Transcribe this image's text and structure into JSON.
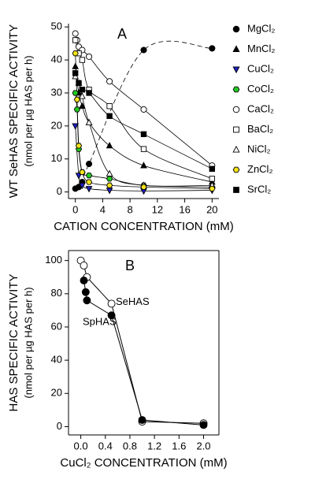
{
  "chart_data": [
    {
      "type": "scatter",
      "panel_label": "A",
      "xlabel": "CATION CONCENTRATION (mM)",
      "ylabel": [
        "WT SeHAS SPECIFIC ACTIVITY",
        "(nmol per µg HAS per h)"
      ],
      "xlim": [
        -1,
        21
      ],
      "ylim": [
        -2,
        51
      ],
      "xticks": [
        0,
        4,
        8,
        12,
        16,
        20
      ],
      "yticks": [
        0,
        10,
        20,
        30,
        40,
        50
      ],
      "legend": "right",
      "fit_curves": true,
      "series": [
        {
          "name": "MgCl₂",
          "marker": "circle",
          "color": "#000000",
          "dashed": true,
          "x": [
            0,
            0.5,
            1,
            2,
            10,
            20
          ],
          "values": [
            1,
            1.5,
            3,
            8.5,
            43,
            43.5
          ]
        },
        {
          "name": "MnCl₂",
          "marker": "triangle-up",
          "color": "#000000",
          "x": [
            0,
            0.5,
            1,
            2,
            5,
            10,
            20
          ],
          "values": [
            38,
            30,
            26,
            21,
            14,
            8,
            3
          ]
        },
        {
          "name": "CuCl₂",
          "marker": "triangle-down",
          "color": "#1f1fbf",
          "x": [
            0,
            0.5,
            1,
            2,
            5,
            10,
            20
          ],
          "values": [
            20,
            5,
            2,
            1,
            0.5,
            0.3,
            0.5
          ]
        },
        {
          "name": "CoCl₂",
          "marker": "hexagon",
          "color": "#22cc22",
          "x": [
            0,
            0.25,
            0.5,
            1,
            2,
            5,
            10,
            20
          ],
          "values": [
            30,
            25,
            13,
            6,
            5,
            4,
            2,
            1.5
          ]
        },
        {
          "name": "CaCl₂",
          "marker": "circle",
          "color": "#ffffff",
          "x": [
            0,
            0.25,
            0.5,
            1,
            2,
            5,
            10,
            20
          ],
          "values": [
            48,
            46,
            44,
            43,
            41,
            33.5,
            25,
            8
          ]
        },
        {
          "name": "BaCl₂",
          "marker": "square",
          "color": "#ffffff",
          "x": [
            0,
            0.5,
            1,
            2,
            5,
            10,
            20
          ],
          "values": [
            46,
            42,
            40,
            31,
            26,
            13,
            4
          ]
        },
        {
          "name": "NiCl₂",
          "marker": "triangle-up",
          "color": "#ffffff",
          "x": [
            0,
            0.5,
            1,
            2,
            5,
            10,
            20
          ],
          "values": [
            35,
            33,
            29,
            21,
            5.5,
            2,
            2
          ]
        },
        {
          "name": "ZnCl₂",
          "marker": "hexagon",
          "color": "#f2e21a",
          "x": [
            0,
            0.25,
            0.5,
            1,
            2,
            5,
            10,
            20
          ],
          "values": [
            42,
            28,
            14,
            6,
            3,
            2,
            1.5,
            1
          ]
        },
        {
          "name": "SrCl₂",
          "marker": "square",
          "color": "#000000",
          "x": [
            0,
            0.5,
            1,
            2,
            5,
            10,
            20
          ],
          "values": [
            36,
            33,
            31,
            30,
            23,
            17.5,
            7
          ]
        }
      ]
    },
    {
      "type": "line",
      "panel_label": "B",
      "xlabel": "CuCl₂ CONCENTRATION (mM)",
      "ylabel": [
        "HAS SPECIFIC ACTIVITY",
        "(nmol per µg HAS per h)"
      ],
      "xlim": [
        -0.2,
        2.25
      ],
      "ylim": [
        -5,
        106
      ],
      "xticks": [
        {
          "value": 0,
          "label": "0.0"
        },
        {
          "value": 0.4,
          "label": "0.4"
        },
        {
          "value": 0.8,
          "label": "0.8"
        },
        {
          "value": 1.2,
          "label": "1.2"
        },
        {
          "value": 1.6,
          "label": "1.6"
        },
        {
          "value": 2,
          "label": "2.0"
        }
      ],
      "yticks": [
        0,
        20,
        40,
        60,
        80,
        100
      ],
      "series": [
        {
          "name": "SeHAS",
          "marker": "circle",
          "color": "#ffffff",
          "x": [
            0,
            0.05,
            0.1,
            0.5,
            1,
            2
          ],
          "values": [
            100,
            97,
            90,
            74,
            3,
            2
          ]
        },
        {
          "name": "SpHAS",
          "marker": "circle",
          "color": "#000000",
          "x": [
            0.05,
            0.08,
            0.1,
            0.5,
            1,
            2
          ],
          "values": [
            88,
            81,
            76,
            67,
            4,
            1
          ]
        }
      ]
    }
  ]
}
